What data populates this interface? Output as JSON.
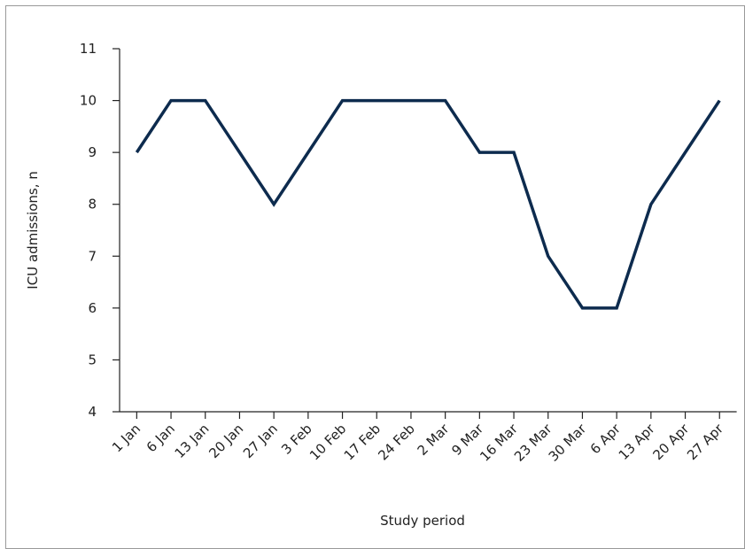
{
  "chart_data": {
    "type": "line",
    "x_label": "Study period",
    "y_label": "ICU admissions, n",
    "categories": [
      "1 Jan",
      "6 Jan",
      "13 Jan",
      "20 Jan",
      "27 Jan",
      "3 Feb",
      "10 Feb",
      "17 Feb",
      "24 Feb",
      "2 Mar",
      "9 Mar",
      "16 Mar",
      "23 Mar",
      "30 Mar",
      "6 Apr",
      "13 Apr",
      "20 Apr",
      "27 Apr"
    ],
    "values": [
      9,
      10,
      10,
      9,
      8,
      9,
      10,
      10,
      10,
      10,
      9,
      9,
      7,
      6,
      6,
      8,
      9,
      10
    ],
    "color": "#0d2b4e",
    "ylim": [
      4,
      11
    ],
    "yticks": [
      4,
      5,
      6,
      7,
      8,
      9,
      10,
      11
    ],
    "grid": false
  }
}
